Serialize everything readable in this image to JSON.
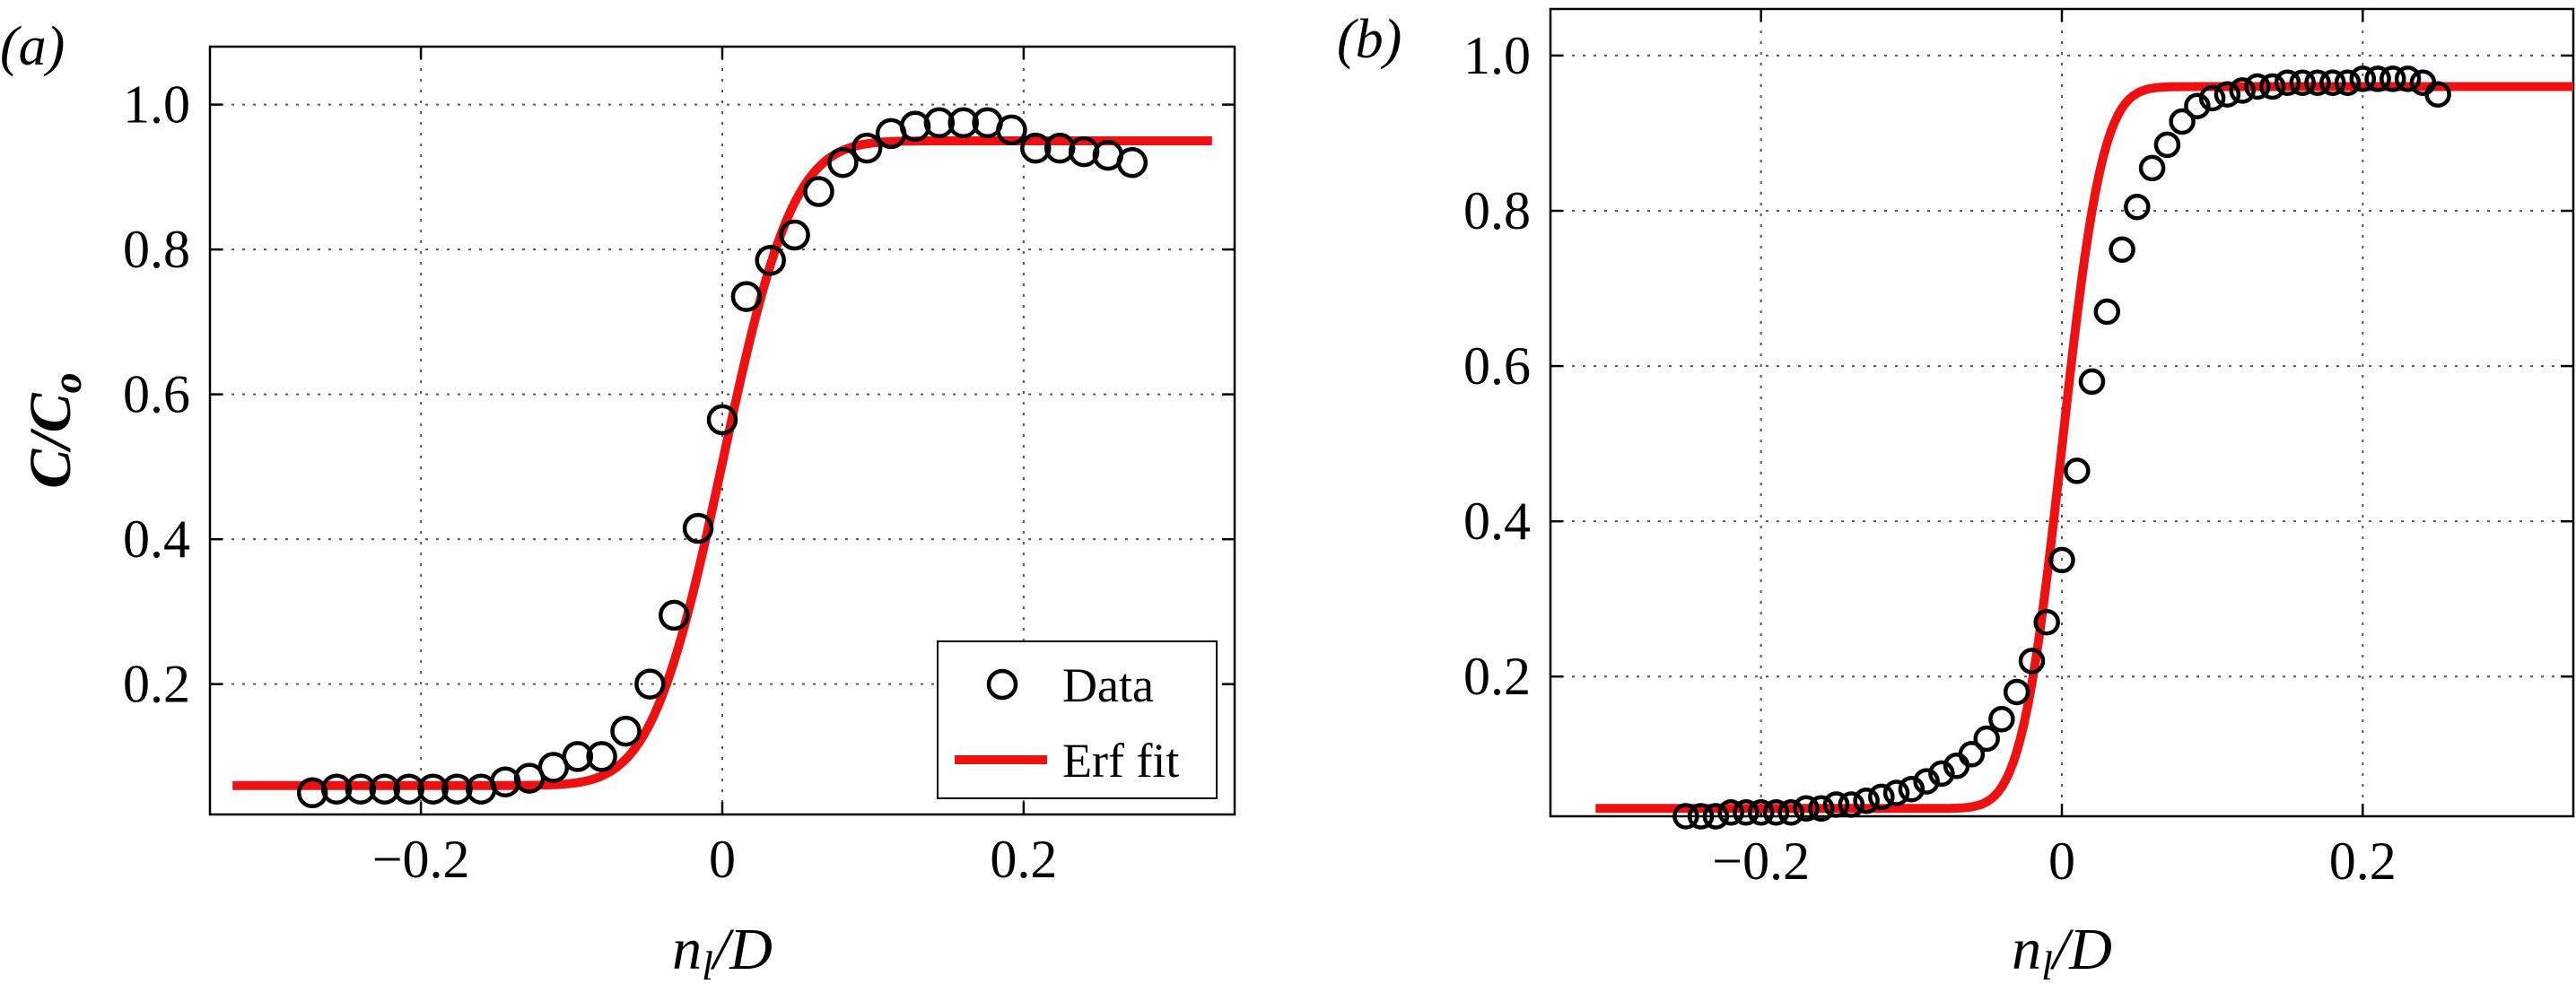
{
  "chart_data": [
    {
      "panel_label": "(a)",
      "type": "scatter",
      "xlabel": "n",
      "xlabel_sub": "l",
      "xlabel_tail": "/D",
      "ylabel": "C/C",
      "ylabel_sub": "o",
      "xlim": [
        -0.34,
        0.34
      ],
      "ylim": [
        0.02,
        1.08
      ],
      "xticks": [
        -0.2,
        0,
        0.2
      ],
      "xtick_labels": [
        "−0.2",
        "0",
        "0.2"
      ],
      "yticks": [
        0.2,
        0.4,
        0.6,
        0.8,
        1.0
      ],
      "ytick_labels": [
        "0.2",
        "0.4",
        "0.6",
        "0.8",
        "1.0"
      ],
      "grid": true,
      "legend": {
        "position": "bottom-right",
        "entries": [
          "Data",
          "Erf fit"
        ]
      },
      "series": [
        {
          "name": "Data",
          "marker": "open-circle",
          "x": [
            -0.272,
            -0.256,
            -0.24,
            -0.224,
            -0.208,
            -0.192,
            -0.176,
            -0.16,
            -0.144,
            -0.128,
            -0.112,
            -0.096,
            -0.08,
            -0.064,
            -0.048,
            -0.032,
            -0.016,
            0.0,
            0.016,
            0.032,
            0.048,
            0.064,
            0.08,
            0.096,
            0.112,
            0.128,
            0.144,
            0.16,
            0.176,
            0.192,
            0.208,
            0.224,
            0.24,
            0.256,
            0.272
          ],
          "y": [
            0.05,
            0.055,
            0.055,
            0.055,
            0.055,
            0.055,
            0.055,
            0.055,
            0.065,
            0.07,
            0.085,
            0.1,
            0.1,
            0.135,
            0.2,
            0.295,
            0.415,
            0.565,
            0.735,
            0.785,
            0.82,
            0.88,
            0.92,
            0.94,
            0.96,
            0.97,
            0.975,
            0.975,
            0.975,
            0.965,
            0.94,
            0.94,
            0.935,
            0.93,
            0.92
          ]
        },
        {
          "name": "Erf fit",
          "type": "line",
          "color": "#ee1111",
          "function": "erf",
          "ymin": 0.06,
          "ymax": 0.95,
          "center": 0.0,
          "width": 0.052,
          "x_range": [
            -0.325,
            0.325
          ]
        }
      ]
    },
    {
      "panel_label": "(b)",
      "type": "scatter",
      "xlabel": "n",
      "xlabel_sub": "l",
      "xlabel_tail": "/D",
      "xlim": [
        -0.34,
        0.34
      ],
      "ylim": [
        0.02,
        1.06
      ],
      "xticks": [
        -0.2,
        0,
        0.2
      ],
      "xtick_labels": [
        "−0.2",
        "0",
        "0.2"
      ],
      "yticks": [
        0.2,
        0.4,
        0.6,
        0.8,
        1.0
      ],
      "ytick_labels": [
        "0.2",
        "0.4",
        "0.6",
        "0.8",
        "1.0"
      ],
      "grid": true,
      "series": [
        {
          "name": "Data",
          "marker": "open-circle",
          "x": [
            -0.25,
            -0.24,
            -0.23,
            -0.22,
            -0.21,
            -0.2,
            -0.19,
            -0.18,
            -0.17,
            -0.16,
            -0.15,
            -0.14,
            -0.13,
            -0.12,
            -0.11,
            -0.1,
            -0.09,
            -0.08,
            -0.07,
            -0.06,
            -0.05,
            -0.04,
            -0.03,
            -0.02,
            -0.01,
            0.0,
            0.01,
            0.02,
            0.03,
            0.04,
            0.05,
            0.06,
            0.07,
            0.08,
            0.09,
            0.1,
            0.11,
            0.12,
            0.13,
            0.14,
            0.15,
            0.16,
            0.17,
            0.18,
            0.19,
            0.2,
            0.21,
            0.22,
            0.23,
            0.24,
            0.25
          ],
          "y": [
            0.02,
            0.02,
            0.02,
            0.025,
            0.025,
            0.025,
            0.025,
            0.025,
            0.03,
            0.03,
            0.035,
            0.035,
            0.04,
            0.045,
            0.05,
            0.055,
            0.065,
            0.075,
            0.085,
            0.1,
            0.12,
            0.145,
            0.18,
            0.22,
            0.27,
            0.35,
            0.465,
            0.58,
            0.67,
            0.75,
            0.805,
            0.855,
            0.885,
            0.915,
            0.935,
            0.945,
            0.95,
            0.955,
            0.96,
            0.96,
            0.965,
            0.965,
            0.965,
            0.965,
            0.965,
            0.97,
            0.97,
            0.97,
            0.97,
            0.965,
            0.95
          ]
        },
        {
          "name": "Erf fit",
          "type": "line",
          "color": "#ee1111",
          "function": "erf",
          "ymin": 0.03,
          "ymax": 0.96,
          "center": 0.0,
          "width": 0.03,
          "x_range": [
            -0.31,
            0.34
          ]
        }
      ]
    }
  ]
}
